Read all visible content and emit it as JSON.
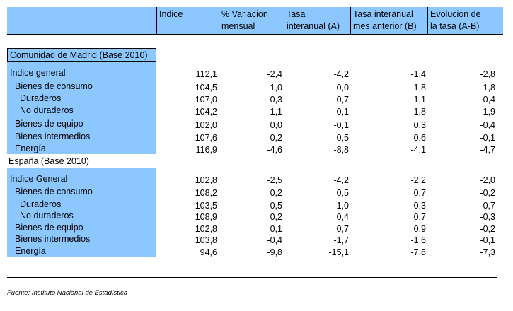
{
  "headers": [
    {
      "lines": [
        "Indice"
      ]
    },
    {
      "lines": [
        "% Variacion",
        "mensual"
      ]
    },
    {
      "lines": [
        "Tasa",
        "interanual (A)"
      ]
    },
    {
      "lines": [
        "Tasa interanual",
        "mes anterior (B)"
      ]
    },
    {
      "lines": [
        "Evolucion de",
        "la tasa (A-B)"
      ]
    }
  ],
  "sections": [
    {
      "title": "Comunidad de Madrid (Base 2010)",
      "rows": [
        {
          "label": "Indice general",
          "values": [
            "112,1",
            "-2,4",
            "-4,2",
            "-1,4",
            "-2,8"
          ]
        },
        {
          "label": "Bienes de consumo",
          "values": [
            "104,5",
            "-1,0",
            "0,0",
            "1,8",
            "-1,8"
          ]
        },
        {
          "label": "Duraderos",
          "values": [
            "107,0",
            "0,3",
            "0,7",
            "1,1",
            "-0,4"
          ]
        },
        {
          "label": "No duraderos",
          "values": [
            "104,2",
            "-1,1",
            "-0,1",
            "1,8",
            "-1,9"
          ]
        },
        {
          "label": "Bienes de equipo",
          "values": [
            "102,0",
            "0,0",
            "-0,1",
            "0,3",
            "-0,4"
          ]
        },
        {
          "label": "Bienes intermedios",
          "values": [
            "107,6",
            "0,2",
            "0,5",
            "0,6",
            "-0,1"
          ]
        },
        {
          "label": "Energía",
          "values": [
            "116,9",
            "-4,6",
            "-8,8",
            "-4,1",
            "-4,7"
          ]
        }
      ]
    },
    {
      "title": "España (Base 2010)",
      "rows": [
        {
          "label": "Indice General",
          "values": [
            "102,8",
            "-2,5",
            "-4,2",
            "-2,2",
            "-2,0"
          ]
        },
        {
          "label": "Bienes de consumo",
          "values": [
            "108,2",
            "0,2",
            "0,5",
            "0,7",
            "-0,2"
          ]
        },
        {
          "label": "Duraderos",
          "values": [
            "103,5",
            "0,5",
            "1,0",
            "0,3",
            "0,7"
          ]
        },
        {
          "label": "No duraderos",
          "values": [
            "108,9",
            "0,2",
            "0,4",
            "0,7",
            "-0,3"
          ]
        },
        {
          "label": "Bienes de equipo",
          "values": [
            "102,8",
            "0,1",
            "0,7",
            "0,9",
            "-0,2"
          ]
        },
        {
          "label": "Bienes intermedios",
          "values": [
            "103,8",
            "-0,4",
            "-1,7",
            "-1,6",
            "-0,1"
          ]
        },
        {
          "label": "Energía",
          "values": [
            "94,6",
            "-9,8",
            "-15,1",
            "-7,8",
            "-7,3"
          ]
        }
      ]
    }
  ],
  "source": "Fuente: Instituto Nacional de Estadística"
}
